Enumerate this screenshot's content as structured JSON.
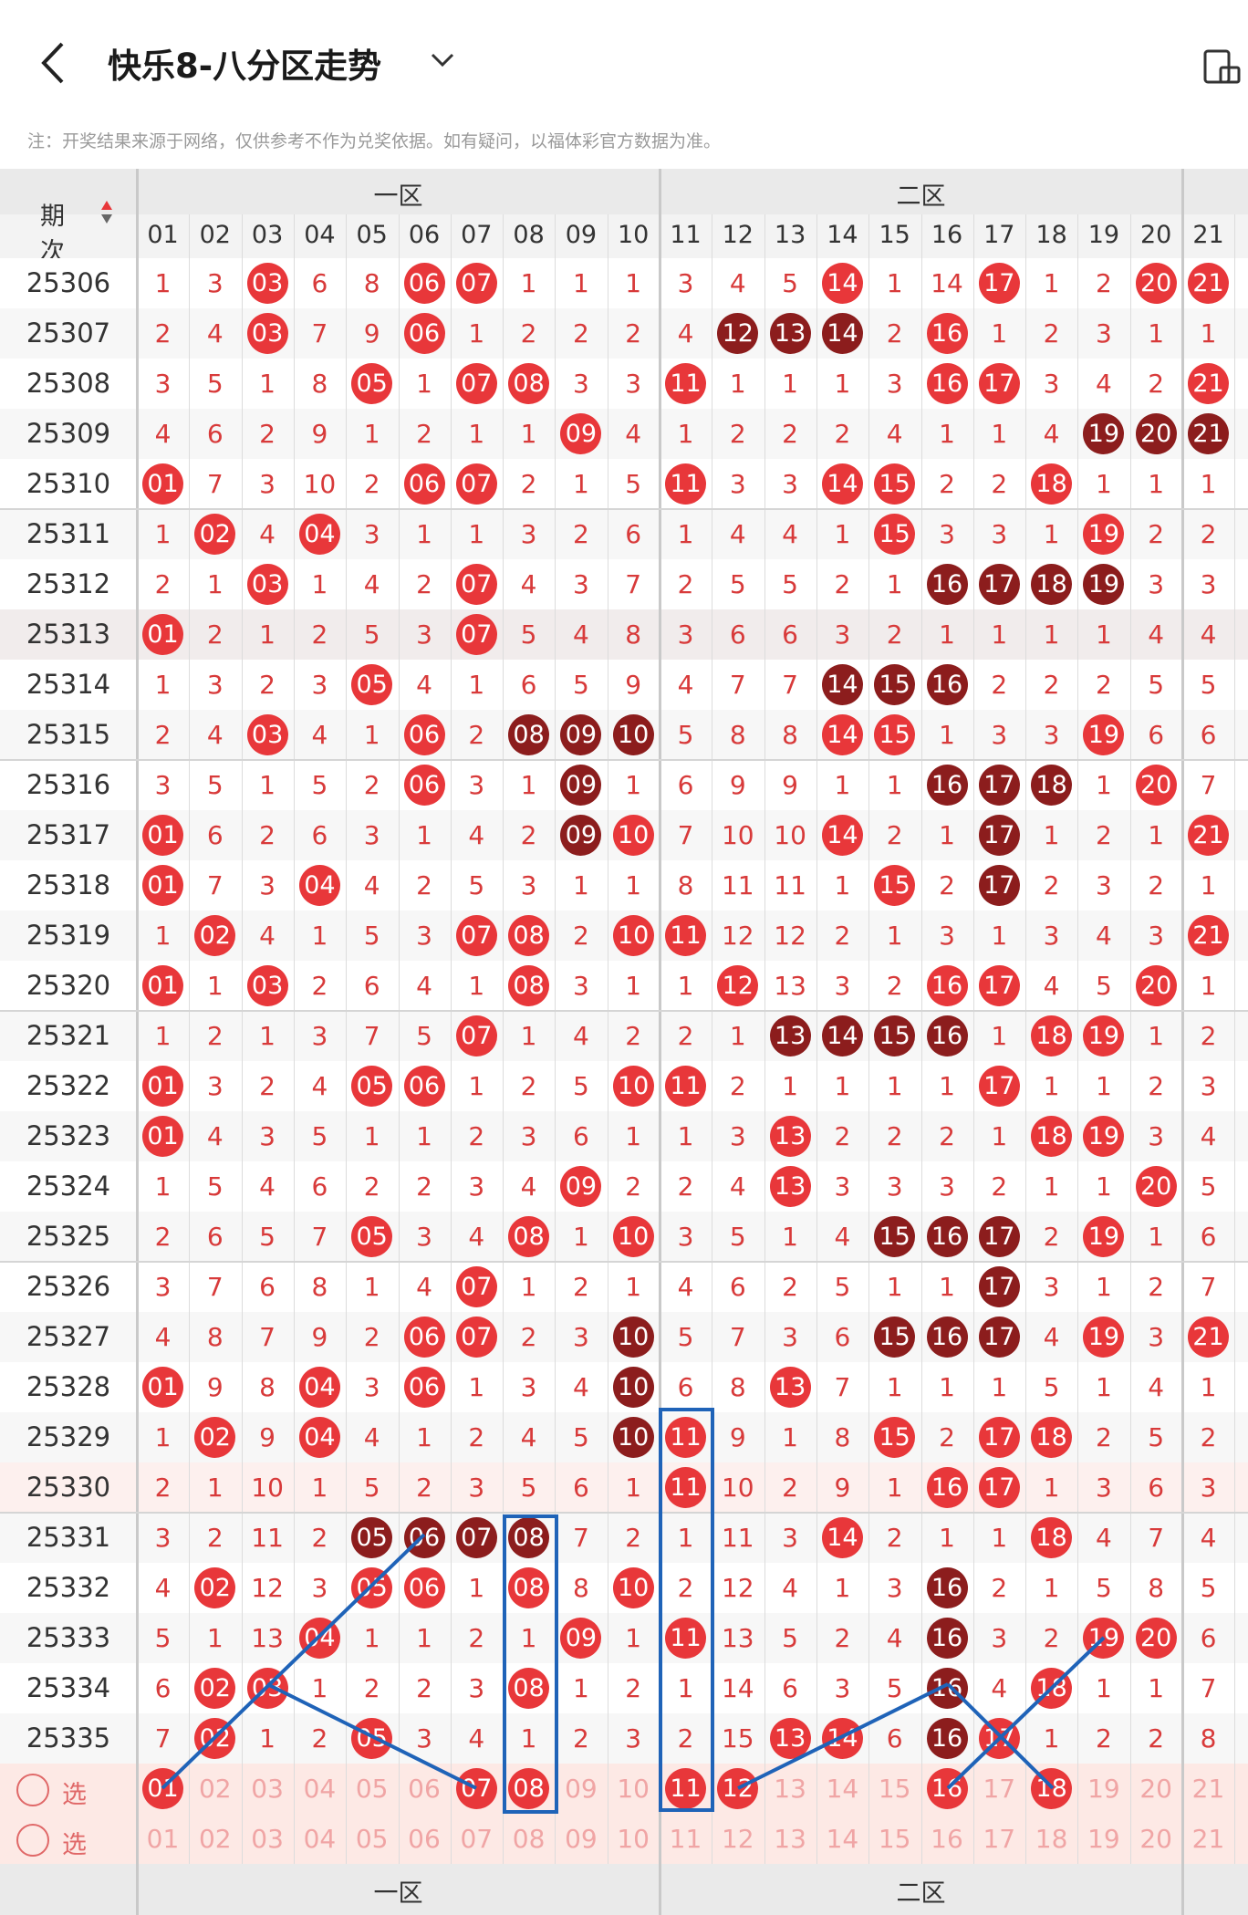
{
  "header": {
    "title": "快乐8-八分区走势",
    "note": "注：开奖结果来源于网络，仅供参考不作为兑奖依据。如有疑问，以福体彩官方数据为准。"
  },
  "table": {
    "period_header": "期次",
    "sections": [
      "一区",
      "二区"
    ],
    "columns": [
      "01",
      "02",
      "03",
      "04",
      "05",
      "06",
      "07",
      "08",
      "09",
      "10",
      "11",
      "12",
      "13",
      "14",
      "15",
      "16",
      "17",
      "18",
      "19",
      "20",
      "21"
    ],
    "rows": [
      {
        "period": "25306",
        "cells": [
          "1",
          "3",
          "03",
          "6",
          "8",
          "06",
          "07",
          "1",
          "1",
          "1",
          "3",
          "4",
          "5",
          "14",
          "1",
          "14",
          "17",
          "1",
          "2",
          "20",
          "21"
        ],
        "hits": [
          3,
          6,
          7,
          14,
          17,
          20,
          21
        ],
        "dark": []
      },
      {
        "period": "25307",
        "cells": [
          "2",
          "4",
          "03",
          "7",
          "9",
          "06",
          "1",
          "2",
          "2",
          "2",
          "4",
          "12",
          "13",
          "14",
          "2",
          "16",
          "1",
          "2",
          "3",
          "1",
          "1"
        ],
        "hits": [
          3,
          6,
          12,
          13,
          14,
          16
        ],
        "dark": [
          12,
          13,
          14
        ]
      },
      {
        "period": "25308",
        "cells": [
          "3",
          "5",
          "1",
          "8",
          "05",
          "1",
          "07",
          "08",
          "3",
          "3",
          "11",
          "1",
          "1",
          "1",
          "3",
          "16",
          "17",
          "3",
          "4",
          "2",
          "21"
        ],
        "hits": [
          5,
          7,
          8,
          11,
          16,
          17,
          21
        ],
        "dark": []
      },
      {
        "period": "25309",
        "cells": [
          "4",
          "6",
          "2",
          "9",
          "1",
          "2",
          "1",
          "1",
          "09",
          "4",
          "1",
          "2",
          "2",
          "2",
          "4",
          "1",
          "1",
          "4",
          "19",
          "20",
          "21"
        ],
        "hits": [
          9,
          19,
          20,
          21
        ],
        "dark": [
          19,
          20,
          21
        ]
      },
      {
        "period": "25310",
        "cells": [
          "01",
          "7",
          "3",
          "10",
          "2",
          "06",
          "07",
          "2",
          "1",
          "5",
          "11",
          "3",
          "3",
          "14",
          "15",
          "2",
          "2",
          "18",
          "1",
          "1",
          "1"
        ],
        "hits": [
          1,
          6,
          7,
          11,
          14,
          15,
          18
        ],
        "dark": []
      },
      {
        "period": "25311",
        "cells": [
          "1",
          "02",
          "4",
          "04",
          "3",
          "1",
          "1",
          "3",
          "2",
          "6",
          "1",
          "4",
          "4",
          "1",
          "15",
          "3",
          "3",
          "1",
          "19",
          "2",
          "2"
        ],
        "hits": [
          2,
          4,
          15,
          19
        ],
        "dark": []
      },
      {
        "period": "25312",
        "cells": [
          "2",
          "1",
          "03",
          "1",
          "4",
          "2",
          "07",
          "4",
          "3",
          "7",
          "2",
          "5",
          "5",
          "2",
          "1",
          "16",
          "17",
          "18",
          "19",
          "3",
          "3"
        ],
        "hits": [
          3,
          7,
          16,
          17,
          18,
          19
        ],
        "dark": [
          16,
          17,
          18,
          19
        ]
      },
      {
        "period": "25313",
        "cells": [
          "01",
          "2",
          "1",
          "2",
          "5",
          "3",
          "07",
          "5",
          "4",
          "8",
          "3",
          "6",
          "6",
          "3",
          "2",
          "1",
          "1",
          "1",
          "1",
          "4",
          "4"
        ],
        "hits": [
          1,
          7
        ],
        "dark": []
      },
      {
        "period": "25314",
        "cells": [
          "1",
          "3",
          "2",
          "3",
          "05",
          "4",
          "1",
          "6",
          "5",
          "9",
          "4",
          "7",
          "7",
          "14",
          "15",
          "16",
          "2",
          "2",
          "2",
          "5",
          "5"
        ],
        "hits": [
          5,
          14,
          15,
          16
        ],
        "dark": [
          14,
          15,
          16
        ]
      },
      {
        "period": "25315",
        "cells": [
          "2",
          "4",
          "03",
          "4",
          "1",
          "06",
          "2",
          "08",
          "09",
          "10",
          "5",
          "8",
          "8",
          "14",
          "15",
          "1",
          "3",
          "3",
          "19",
          "6",
          "6"
        ],
        "hits": [
          3,
          6,
          8,
          9,
          10,
          14,
          15,
          19
        ],
        "dark": [
          8,
          9,
          10
        ]
      },
      {
        "period": "25316",
        "cells": [
          "3",
          "5",
          "1",
          "5",
          "2",
          "06",
          "3",
          "1",
          "09",
          "1",
          "6",
          "9",
          "9",
          "1",
          "1",
          "16",
          "17",
          "18",
          "1",
          "20",
          "7"
        ],
        "hits": [
          6,
          9,
          16,
          17,
          18,
          20
        ],
        "dark": [
          9,
          16,
          17,
          18
        ]
      },
      {
        "period": "25317",
        "cells": [
          "01",
          "6",
          "2",
          "6",
          "3",
          "1",
          "4",
          "2",
          "09",
          "10",
          "7",
          "10",
          "10",
          "14",
          "2",
          "1",
          "17",
          "1",
          "2",
          "1",
          "21"
        ],
        "hits": [
          1,
          9,
          10,
          14,
          17,
          21
        ],
        "dark": [
          9,
          17
        ]
      },
      {
        "period": "25318",
        "cells": [
          "01",
          "7",
          "3",
          "04",
          "4",
          "2",
          "5",
          "3",
          "1",
          "1",
          "8",
          "11",
          "11",
          "1",
          "15",
          "2",
          "17",
          "2",
          "3",
          "2",
          "1"
        ],
        "hits": [
          1,
          4,
          15,
          17
        ],
        "dark": [
          17
        ]
      },
      {
        "period": "25319",
        "cells": [
          "1",
          "02",
          "4",
          "1",
          "5",
          "3",
          "07",
          "08",
          "2",
          "10",
          "11",
          "12",
          "12",
          "2",
          "1",
          "3",
          "1",
          "3",
          "4",
          "3",
          "21"
        ],
        "hits": [
          2,
          7,
          8,
          10,
          11,
          21
        ],
        "dark": []
      },
      {
        "period": "25320",
        "cells": [
          "01",
          "1",
          "03",
          "2",
          "6",
          "4",
          "1",
          "08",
          "3",
          "1",
          "1",
          "12",
          "13",
          "3",
          "2",
          "16",
          "17",
          "4",
          "5",
          "20",
          "1"
        ],
        "hits": [
          1,
          3,
          8,
          12,
          16,
          17,
          20
        ],
        "dark": []
      },
      {
        "period": "25321",
        "cells": [
          "1",
          "2",
          "1",
          "3",
          "7",
          "5",
          "07",
          "1",
          "4",
          "2",
          "2",
          "1",
          "13",
          "14",
          "15",
          "16",
          "1",
          "18",
          "19",
          "1",
          "2"
        ],
        "hits": [
          7,
          13,
          14,
          15,
          16,
          18,
          19
        ],
        "dark": [
          13,
          14,
          15,
          16
        ]
      },
      {
        "period": "25322",
        "cells": [
          "01",
          "3",
          "2",
          "4",
          "05",
          "06",
          "1",
          "2",
          "5",
          "10",
          "11",
          "2",
          "1",
          "1",
          "1",
          "1",
          "17",
          "1",
          "1",
          "2",
          "3"
        ],
        "hits": [
          1,
          5,
          6,
          10,
          11,
          17
        ],
        "dark": []
      },
      {
        "period": "25323",
        "cells": [
          "01",
          "4",
          "3",
          "5",
          "1",
          "1",
          "2",
          "3",
          "6",
          "1",
          "1",
          "3",
          "13",
          "2",
          "2",
          "2",
          "1",
          "18",
          "19",
          "3",
          "4"
        ],
        "hits": [
          1,
          13,
          18,
          19
        ],
        "dark": []
      },
      {
        "period": "25324",
        "cells": [
          "1",
          "5",
          "4",
          "6",
          "2",
          "2",
          "3",
          "4",
          "09",
          "2",
          "2",
          "4",
          "13",
          "3",
          "3",
          "3",
          "2",
          "1",
          "1",
          "20",
          "5"
        ],
        "hits": [
          9,
          13,
          20
        ],
        "dark": []
      },
      {
        "period": "25325",
        "cells": [
          "2",
          "6",
          "5",
          "7",
          "05",
          "3",
          "4",
          "08",
          "1",
          "10",
          "3",
          "5",
          "1",
          "4",
          "15",
          "16",
          "17",
          "2",
          "19",
          "1",
          "6"
        ],
        "hits": [
          5,
          8,
          10,
          15,
          16,
          17,
          19
        ],
        "dark": [
          15,
          16,
          17
        ]
      },
      {
        "period": "25326",
        "cells": [
          "3",
          "7",
          "6",
          "8",
          "1",
          "4",
          "07",
          "1",
          "2",
          "1",
          "4",
          "6",
          "2",
          "5",
          "1",
          "1",
          "17",
          "3",
          "1",
          "2",
          "7"
        ],
        "hits": [
          7,
          17
        ],
        "dark": [
          17
        ]
      },
      {
        "period": "25327",
        "cells": [
          "4",
          "8",
          "7",
          "9",
          "2",
          "06",
          "07",
          "2",
          "3",
          "10",
          "5",
          "7",
          "3",
          "6",
          "15",
          "16",
          "17",
          "4",
          "19",
          "3",
          "21"
        ],
        "hits": [
          6,
          7,
          10,
          15,
          16,
          17,
          19,
          21
        ],
        "dark": [
          10,
          15,
          16,
          17
        ]
      },
      {
        "period": "25328",
        "cells": [
          "01",
          "9",
          "8",
          "04",
          "3",
          "06",
          "1",
          "3",
          "4",
          "10",
          "6",
          "8",
          "13",
          "7",
          "1",
          "1",
          "1",
          "5",
          "1",
          "4",
          "1"
        ],
        "hits": [
          1,
          4,
          6,
          10,
          13
        ],
        "dark": [
          10
        ]
      },
      {
        "period": "25329",
        "cells": [
          "1",
          "02",
          "9",
          "04",
          "4",
          "1",
          "2",
          "4",
          "5",
          "10",
          "11",
          "9",
          "1",
          "8",
          "15",
          "2",
          "17",
          "18",
          "2",
          "5",
          "2"
        ],
        "hits": [
          2,
          4,
          10,
          11,
          15,
          17,
          18
        ],
        "dark": [
          10
        ]
      },
      {
        "period": "25330",
        "cells": [
          "2",
          "1",
          "10",
          "1",
          "5",
          "2",
          "3",
          "5",
          "6",
          "1",
          "11",
          "10",
          "2",
          "9",
          "1",
          "16",
          "17",
          "1",
          "3",
          "6",
          "3"
        ],
        "hits": [
          11,
          16,
          17
        ],
        "dark": []
      },
      {
        "period": "25331",
        "cells": [
          "3",
          "2",
          "11",
          "2",
          "05",
          "06",
          "07",
          "08",
          "7",
          "2",
          "1",
          "11",
          "3",
          "14",
          "2",
          "1",
          "1",
          "18",
          "4",
          "7",
          "4"
        ],
        "hits": [
          5,
          6,
          7,
          8,
          14,
          18
        ],
        "dark": [
          5,
          6,
          7,
          8
        ]
      },
      {
        "period": "25332",
        "cells": [
          "4",
          "02",
          "12",
          "3",
          "05",
          "06",
          "1",
          "08",
          "8",
          "10",
          "2",
          "12",
          "4",
          "1",
          "3",
          "16",
          "2",
          "1",
          "5",
          "8",
          "5"
        ],
        "hits": [
          2,
          5,
          6,
          8,
          10,
          16
        ],
        "dark": [
          16
        ]
      },
      {
        "period": "25333",
        "cells": [
          "5",
          "1",
          "13",
          "04",
          "1",
          "1",
          "2",
          "1",
          "09",
          "1",
          "11",
          "13",
          "5",
          "2",
          "4",
          "16",
          "3",
          "2",
          "19",
          "20",
          "6"
        ],
        "hits": [
          4,
          9,
          11,
          16,
          19,
          20
        ],
        "dark": [
          16
        ]
      },
      {
        "period": "25334",
        "cells": [
          "6",
          "02",
          "03",
          "1",
          "2",
          "2",
          "3",
          "08",
          "1",
          "2",
          "1",
          "14",
          "6",
          "3",
          "5",
          "16",
          "4",
          "18",
          "1",
          "1",
          "7"
        ],
        "hits": [
          2,
          3,
          8,
          16,
          18
        ],
        "dark": [
          16
        ]
      },
      {
        "period": "25335",
        "cells": [
          "7",
          "02",
          "1",
          "2",
          "05",
          "3",
          "4",
          "1",
          "2",
          "3",
          "2",
          "15",
          "13",
          "14",
          "6",
          "16",
          "17",
          "1",
          "2",
          "2",
          "8"
        ],
        "hits": [
          2,
          5,
          13,
          14,
          16,
          17
        ],
        "dark": [
          16
        ]
      }
    ],
    "select_rows": [
      {
        "label": "选号",
        "numbers": [
          "01",
          "02",
          "03",
          "04",
          "05",
          "06",
          "07",
          "08",
          "09",
          "10",
          "11",
          "12",
          "13",
          "14",
          "15",
          "16",
          "17",
          "18",
          "19",
          "20",
          "21"
        ],
        "picked": [
          1,
          7,
          8,
          11,
          12,
          16,
          18
        ]
      },
      {
        "label": "选号",
        "numbers": [
          "01",
          "02",
          "03",
          "04",
          "05",
          "06",
          "07",
          "08",
          "09",
          "10",
          "11",
          "12",
          "13",
          "14",
          "15",
          "16",
          "17",
          "18",
          "19",
          "20",
          "21"
        ],
        "picked": []
      }
    ]
  },
  "colors": {
    "hit_red": "#e8373a",
    "hit_dark": "#8c1d1d",
    "miss_text": "#d83a3a",
    "annotation_blue": "#1f63b8"
  }
}
